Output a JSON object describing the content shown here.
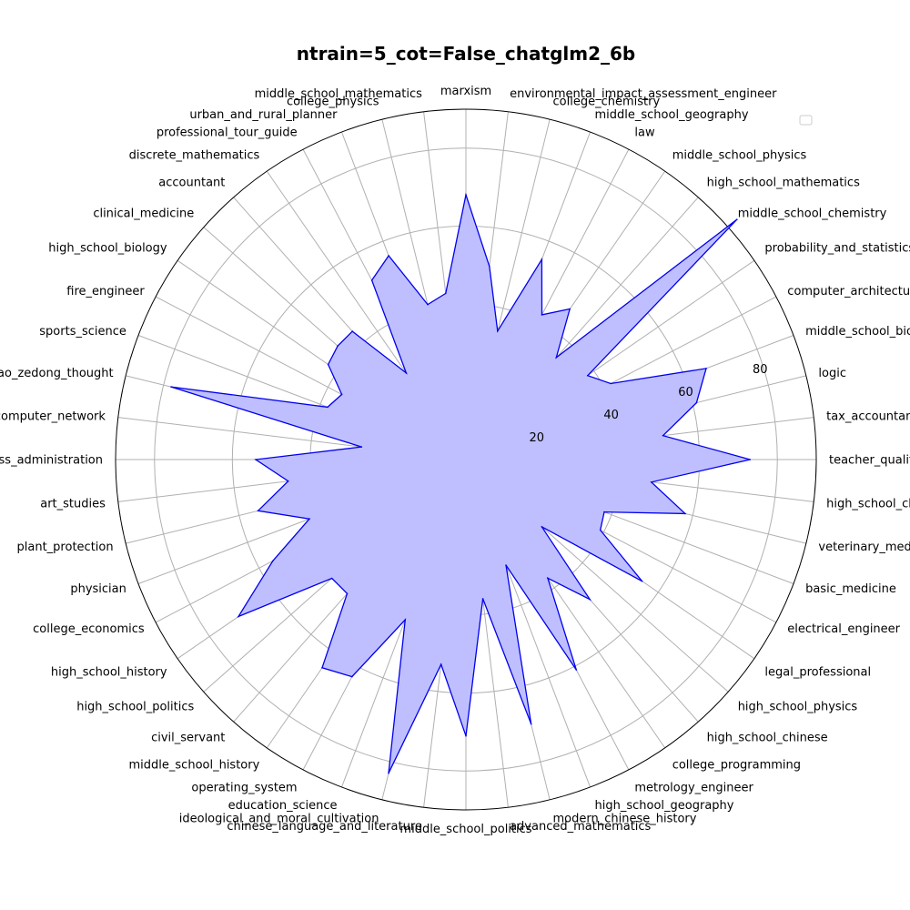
{
  "chart_data": {
    "type": "radar",
    "title": "ntrain=5_cot=False_chatglm2_6b",
    "rlim": [
      0,
      90
    ],
    "r_ticks": [
      20,
      40,
      60,
      80
    ],
    "grid": true,
    "legend": "top-right",
    "series_color": "#0000ee",
    "fill_color": "#bfbfff",
    "categories": [
      "marxism",
      "environmental_impact_assessment_engineer",
      "college_chemistry",
      "middle_school_geography",
      "law",
      "middle_school_physics",
      "high_school_mathematics",
      "middle_school_chemistry",
      "probability_and_statistics",
      "computer_architecture",
      "middle_school_biology",
      "logic",
      "tax_accountant",
      "teacher_qualification",
      "high_school_chemistry",
      "veterinary_medicine",
      "basic_medicine",
      "electrical_engineer",
      "legal_professional",
      "high_school_physics",
      "high_school_chinese",
      "college_programming",
      "metrology_engineer",
      "high_school_geography",
      "modern_chinese_history",
      "advanced_mathematics",
      "middle_school_politics",
      "chinese_language_and_literature",
      "ideological_and_moral_cultivation",
      "education_science",
      "operating_system",
      "middle_school_history",
      "civil_servant",
      "high_school_politics",
      "high_school_history",
      "college_economics",
      "physician",
      "plant_protection",
      "art_studies",
      "business_administration",
      "computer_network",
      "mao_zedong_thought",
      "sports_science",
      "fire_engineer",
      "high_school_biology",
      "clinical_medicine",
      "accountant",
      "discrete_mathematics",
      "professional_tour_guide",
      "urban_and_rural_planner",
      "college_physics",
      "middle_school_mathematics"
    ],
    "values": [
      68,
      50,
      34,
      55,
      42,
      47,
      35,
      93,
      38,
      42,
      66,
      61,
      51,
      73,
      48,
      58,
      38,
      39,
      55,
      26,
      48,
      37,
      61,
      29,
      70,
      36,
      71,
      53,
      83,
      44,
      63,
      65,
      46,
      46,
      71,
      56,
      43,
      55,
      46,
      54,
      27,
      78,
      38,
      36,
      43,
      44,
      44,
      27,
      52,
      56,
      41,
      43
    ]
  }
}
